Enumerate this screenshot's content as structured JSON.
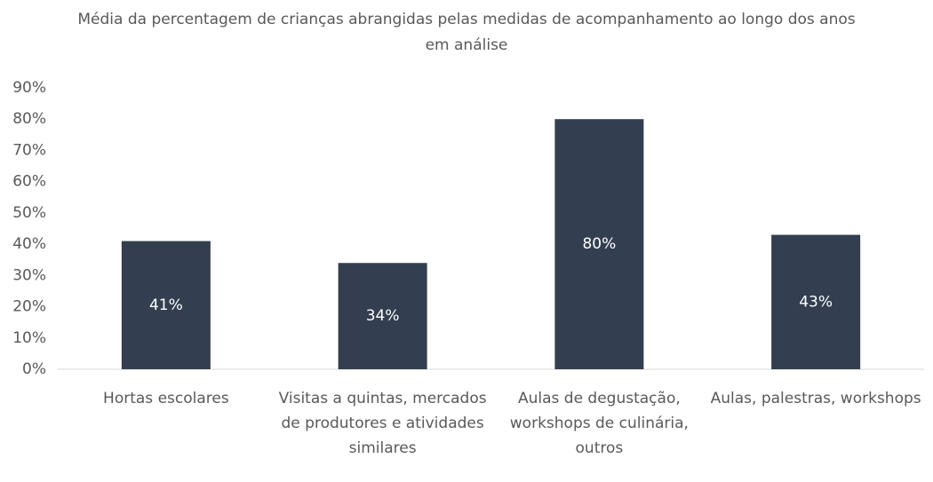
{
  "chart_data": {
    "type": "bar",
    "title": "Média da percentagem de crianças abrangidas pelas medidas de acompanhamento ao longo dos anos em análise",
    "categories": [
      "Hortas escolares",
      "Visitas a quintas, mercados de produtores e atividades similares",
      "Aulas de degustação, workshops de culinária, outros",
      "Aulas, palestras, workshops"
    ],
    "values": [
      41,
      34,
      80,
      43
    ],
    "value_labels": [
      "41%",
      "34%",
      "80%",
      "43%"
    ],
    "color": "#333f50",
    "ylim": [
      0,
      90
    ],
    "yticks": [
      {
        "value": 0,
        "label": "0%"
      },
      {
        "value": 10,
        "label": "10%"
      },
      {
        "value": 20,
        "label": "20%"
      },
      {
        "value": 30,
        "label": "30%"
      },
      {
        "value": 40,
        "label": "40%"
      },
      {
        "value": 50,
        "label": "50%"
      },
      {
        "value": 60,
        "label": "60%"
      },
      {
        "value": 70,
        "label": "70%"
      },
      {
        "value": 80,
        "label": "80%"
      },
      {
        "value": 90,
        "label": "90%"
      }
    ],
    "grid": false
  }
}
